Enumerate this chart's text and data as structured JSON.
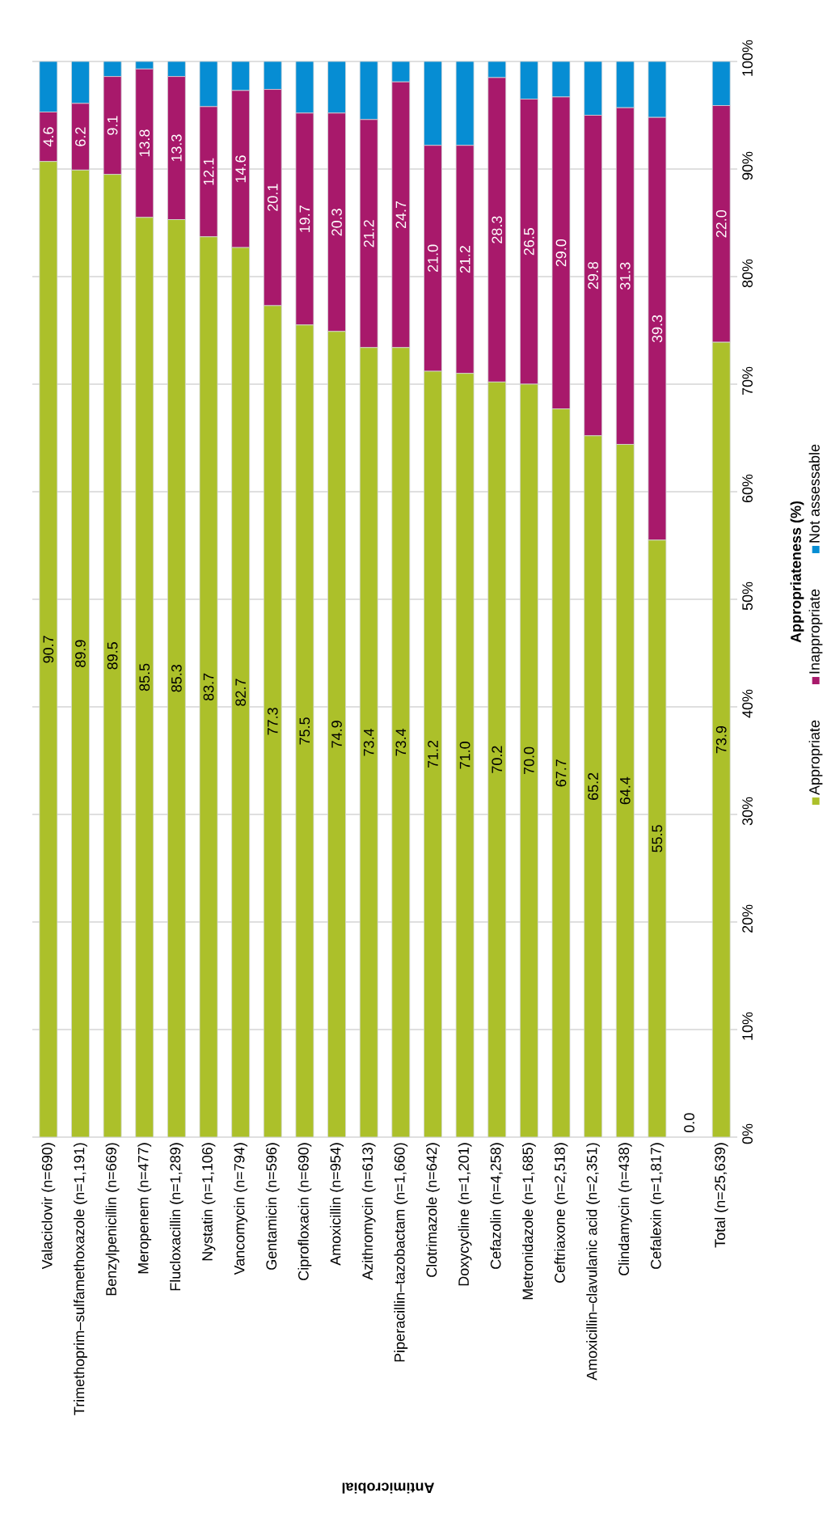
{
  "chart_data": {
    "type": "bar",
    "stacked": true,
    "xlabel": "Antimicrobial",
    "ylabel": "Appropriateness (%)",
    "categories": [
      "Valaciclovir (n=690)",
      "Trimethoprim–sulfamethoxazole (n=1,191)",
      "Benzylpenicillin (n=669)",
      "Meropenem (n=477)",
      "Flucloxacillin (n=1,289)",
      "Nystatin (n=1,106)",
      "Vancomycin (n=794)",
      "Gentamicin (n=596)",
      "Ciprofloxacin (n=690)",
      "Amoxicillin (n=954)",
      "Azithromycin (n=613)",
      "Piperacillin–tazobactam (n=1,660)",
      "Clotrimazole (n=642)",
      "Doxycycline (n=1,201)",
      "Cefazolin (n=4,258)",
      "Metronidazole (n=1,685)",
      "Ceftriaxone (n=2,518)",
      "Amoxicillin–clavulanic acid (n=2,351)",
      "Clindamycin (n=438)",
      "Cefalexin (n=1,817)",
      null,
      "Total (n=25,639)"
    ],
    "series": [
      {
        "name": "Appropriate",
        "color": "#acc02a",
        "values": [
          90.7,
          89.9,
          89.5,
          85.5,
          85.3,
          83.7,
          82.7,
          77.3,
          75.5,
          74.9,
          73.4,
          73.4,
          71.2,
          71.0,
          70.2,
          70.0,
          67.7,
          65.2,
          64.4,
          55.5,
          0.0,
          73.9
        ],
        "value_labels": [
          "90.7",
          "89.9",
          "89.5",
          "85.5",
          "85.3",
          "83.7",
          "82.7",
          "77.3",
          "75.5",
          "74.9",
          "73.4",
          "73.4",
          "71.2",
          "71.0",
          "70.2",
          "70.0",
          "67.7",
          "65.2",
          "64.4",
          "55.5",
          "0.0",
          "73.9"
        ]
      },
      {
        "name": "Inappropriate",
        "color": "#a8196b",
        "values": [
          4.6,
          6.2,
          9.1,
          13.8,
          13.3,
          12.1,
          14.6,
          20.1,
          19.7,
          20.3,
          21.2,
          24.7,
          21.0,
          21.2,
          28.3,
          26.5,
          29.0,
          29.8,
          31.3,
          39.3,
          0,
          22.0
        ],
        "value_labels": [
          "4.6",
          "6.2",
          "9.1",
          "13.8",
          "13.3",
          "12.1",
          "14.6",
          "20.1",
          "19.7",
          "20.3",
          "21.2",
          "24.7",
          "21.0",
          "21.2",
          "28.3",
          "26.5",
          "29.0",
          "29.8",
          "31.3",
          "39.3",
          null,
          "22.0"
        ]
      },
      {
        "name": "Not assessable",
        "color": "#068dd3",
        "values": [
          4.7,
          3.9,
          1.4,
          0.7,
          1.4,
          4.2,
          2.7,
          2.6,
          4.8,
          4.8,
          5.4,
          1.9,
          7.8,
          7.8,
          1.5,
          3.5,
          3.3,
          5.0,
          4.3,
          5.2,
          0,
          4.1
        ]
      }
    ],
    "ylim": [
      0,
      100
    ],
    "yticks": [
      {
        "value": 0,
        "label": "0%"
      },
      {
        "value": 10,
        "label": "10%"
      },
      {
        "value": 20,
        "label": "20%"
      },
      {
        "value": 30,
        "label": "30%"
      },
      {
        "value": 40,
        "label": "40%"
      },
      {
        "value": 50,
        "label": "50%"
      },
      {
        "value": 60,
        "label": "60%"
      },
      {
        "value": 70,
        "label": "70%"
      },
      {
        "value": 80,
        "label": "80%"
      },
      {
        "value": 90,
        "label": "90%"
      },
      {
        "value": 100,
        "label": "100%"
      }
    ],
    "grid": "y",
    "legend": "right"
  }
}
